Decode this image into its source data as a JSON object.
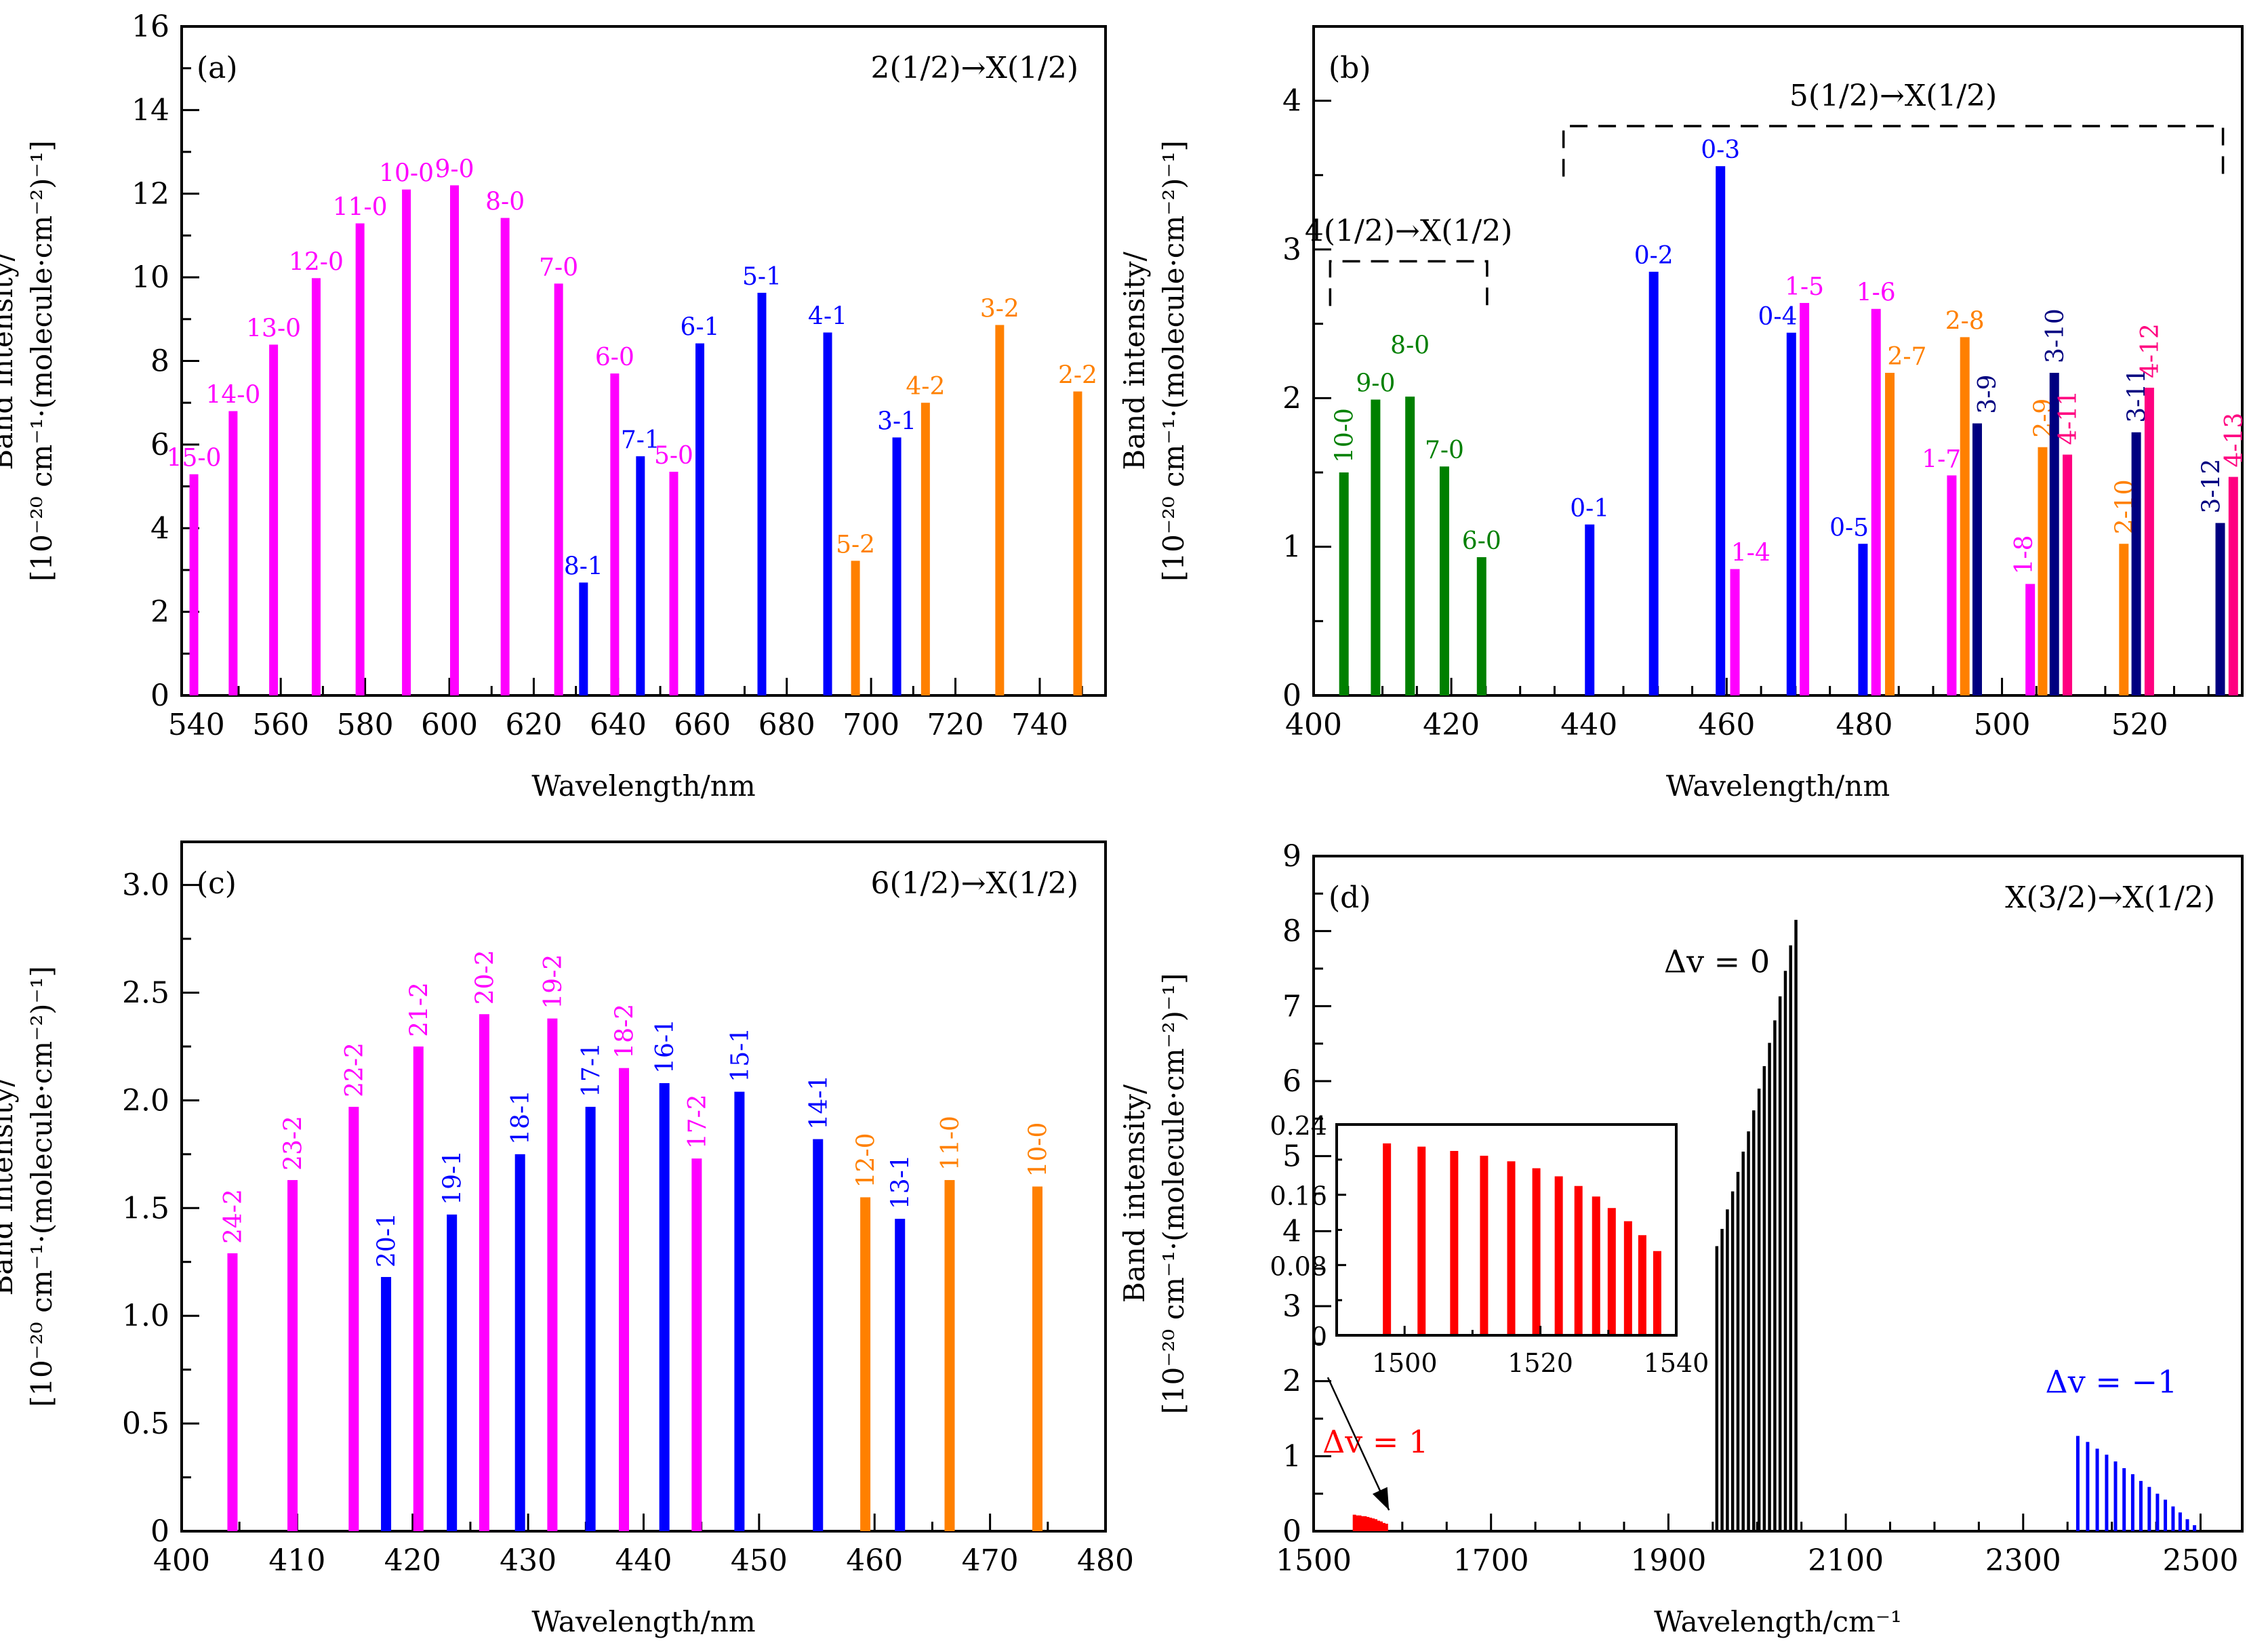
{
  "figure": {
    "y_axis_title_line1": "Band intensity/",
    "y_axis_title_line2": "[10⁻²⁰ cm⁻¹·(molecule·cm⁻²)⁻¹]"
  },
  "colors": {
    "magenta": "#FF00FF",
    "blue": "#0000FF",
    "orange": "#FF8000",
    "green": "#008000",
    "navy": "#000080",
    "deeppink": "#FF0080",
    "red": "#FF0000",
    "black": "#000000"
  },
  "chart_data": [
    {
      "id": "a",
      "type": "bar",
      "panel_label": "(a)",
      "title": "2(1/2)→X(1/2)",
      "xlabel": "Wavelength/nm",
      "ylabel": "Band intensity/[10^-20 cm^-1·(molecule·cm^-2)^-1]",
      "xlim": [
        536.5,
        755.6
      ],
      "ylim": [
        0,
        16
      ],
      "xticks": [
        540,
        560,
        580,
        600,
        620,
        640,
        660,
        680,
        700,
        720,
        740
      ],
      "xminor": 10,
      "yticks": [
        0,
        2,
        4,
        6,
        8,
        10,
        12,
        14,
        16
      ],
      "yminor": 1,
      "label_rotation": "horizontal",
      "bars": [
        {
          "label": "15-0",
          "x": 539.4,
          "y": 5.29,
          "color": "magenta"
        },
        {
          "label": "14-0",
          "x": 548.7,
          "y": 6.8,
          "color": "magenta"
        },
        {
          "label": "13-0",
          "x": 558.3,
          "y": 8.39,
          "color": "magenta"
        },
        {
          "label": "12-0",
          "x": 568.4,
          "y": 9.98,
          "color": "magenta"
        },
        {
          "label": "11-0",
          "x": 578.8,
          "y": 11.29,
          "color": "magenta"
        },
        {
          "label": "10-0",
          "x": 589.8,
          "y": 12.1,
          "color": "magenta"
        },
        {
          "label": "9-0",
          "x": 601.2,
          "y": 12.2,
          "color": "magenta"
        },
        {
          "label": "8-0",
          "x": 613.2,
          "y": 11.42,
          "color": "magenta"
        },
        {
          "label": "7-0",
          "x": 625.9,
          "y": 9.85,
          "color": "magenta"
        },
        {
          "label": "8-1",
          "x": 631.8,
          "y": 2.7,
          "color": "blue"
        },
        {
          "label": "6-0",
          "x": 639.2,
          "y": 7.7,
          "color": "magenta"
        },
        {
          "label": "7-1",
          "x": 645.3,
          "y": 5.72,
          "color": "blue"
        },
        {
          "label": "5-0",
          "x": 653.2,
          "y": 5.35,
          "color": "magenta"
        },
        {
          "label": "6-1",
          "x": 659.4,
          "y": 8.42,
          "color": "blue"
        },
        {
          "label": "5-1",
          "x": 674.1,
          "y": 9.63,
          "color": "blue"
        },
        {
          "label": "4-1",
          "x": 689.7,
          "y": 8.68,
          "color": "blue"
        },
        {
          "label": "5-2",
          "x": 696.3,
          "y": 3.22,
          "color": "orange"
        },
        {
          "label": "3-1",
          "x": 706.1,
          "y": 6.17,
          "color": "blue"
        },
        {
          "label": "4-2",
          "x": 712.9,
          "y": 7.0,
          "color": "orange"
        },
        {
          "label": "3-2",
          "x": 730.5,
          "y": 8.86,
          "color": "orange"
        },
        {
          "label": "2-2",
          "x": 749.0,
          "y": 7.27,
          "color": "orange"
        }
      ]
    },
    {
      "id": "b",
      "type": "bar",
      "panel_label": "(b)",
      "title": "",
      "xlabel": "Wavelength/nm",
      "ylabel": "Band intensity/[10^-20 cm^-1·(molecule·cm^-2)^-1]",
      "xlim": [
        400,
        534.9
      ],
      "ylim": [
        0,
        4.5
      ],
      "xticks": [
        400,
        420,
        440,
        460,
        480,
        500,
        520
      ],
      "xminor": 5,
      "yticks": [
        0,
        1,
        2,
        3,
        4
      ],
      "yminor": 0.5,
      "annotations": [
        {
          "text": "4(1/2)→X(1/2)",
          "bracket_x": [
            402.4,
            425.2
          ],
          "bracket_y": [
            2.62,
            2.92
          ]
        },
        {
          "text": "5(1/2)→X(1/2)",
          "bracket_x": [
            436.3,
            532.1
          ],
          "bracket_y": [
            3.49,
            3.83
          ]
        }
      ],
      "bars": [
        {
          "label": "10-0",
          "x": 404.4,
          "y": 1.5,
          "color": "green",
          "rot": true
        },
        {
          "label": "9-0",
          "x": 409.0,
          "y": 1.99,
          "color": "green",
          "rot": false
        },
        {
          "label": "8-0",
          "x": 414.0,
          "y": 2.01,
          "color": "green",
          "rot": false,
          "label_dy": 2.3
        },
        {
          "label": "7-0",
          "x": 419.0,
          "y": 1.54,
          "color": "green",
          "rot": false
        },
        {
          "label": "6-0",
          "x": 424.4,
          "y": 0.93,
          "color": "green",
          "rot": false
        },
        {
          "label": "0-1",
          "x": 440.1,
          "y": 1.15,
          "color": "blue",
          "rot": false
        },
        {
          "label": "0-2",
          "x": 449.4,
          "y": 2.85,
          "color": "blue",
          "rot": false
        },
        {
          "label": "0-3",
          "x": 459.1,
          "y": 3.56,
          "color": "blue",
          "rot": false
        },
        {
          "label": "1-4",
          "x": 461.2,
          "y": 0.85,
          "color": "magenta",
          "rot": false,
          "dx": 2.3
        },
        {
          "label": "0-4",
          "x": 469.4,
          "y": 2.44,
          "color": "blue",
          "rot": false,
          "dx": -2.0
        },
        {
          "label": "1-5",
          "x": 471.3,
          "y": 2.64,
          "color": "magenta",
          "rot": false
        },
        {
          "label": "0-5",
          "x": 479.8,
          "y": 1.02,
          "color": "blue",
          "rot": false,
          "dx": -2.0
        },
        {
          "label": "1-6",
          "x": 481.7,
          "y": 2.6,
          "color": "magenta",
          "rot": false
        },
        {
          "label": "2-7",
          "x": 483.7,
          "y": 2.17,
          "color": "orange",
          "rot": false,
          "dx": 2.5
        },
        {
          "label": "1-7",
          "x": 492.7,
          "y": 1.48,
          "color": "magenta",
          "rot": false,
          "dx": -1.5
        },
        {
          "label": "2-8",
          "x": 494.6,
          "y": 2.41,
          "color": "orange",
          "rot": false
        },
        {
          "label": "3-9",
          "x": 496.4,
          "y": 1.83,
          "color": "navy",
          "rot": true,
          "dx": 1.4
        },
        {
          "label": "1-8",
          "x": 504.1,
          "y": 0.75,
          "color": "magenta",
          "rot": true,
          "dx": -1.0
        },
        {
          "label": "2-9",
          "x": 505.9,
          "y": 1.67,
          "color": "orange",
          "rot": true
        },
        {
          "label": "3-10",
          "x": 507.6,
          "y": 2.17,
          "color": "navy",
          "rot": true
        },
        {
          "label": "4-11",
          "x": 509.5,
          "y": 1.62,
          "color": "deeppink",
          "rot": true
        },
        {
          "label": "2-10",
          "x": 517.7,
          "y": 1.02,
          "color": "orange",
          "rot": true
        },
        {
          "label": "3-11",
          "x": 519.5,
          "y": 1.77,
          "color": "navy",
          "rot": true
        },
        {
          "label": "4-12",
          "x": 521.4,
          "y": 2.07,
          "color": "deeppink",
          "rot": true
        },
        {
          "label": "3-12",
          "x": 531.7,
          "y": 1.16,
          "color": "navy",
          "rot": true,
          "dx": -1.4
        },
        {
          "label": "4-13",
          "x": 533.6,
          "y": 1.47,
          "color": "deeppink",
          "rot": true
        }
      ]
    },
    {
      "id": "c",
      "type": "bar",
      "panel_label": "(c)",
      "title": "6(1/2)→X(1/2)",
      "xlabel": "Wavelength/nm",
      "ylabel": "Band intensity/[10^-20 cm^-1·(molecule·cm^-2)^-1]",
      "xlim": [
        400,
        480
      ],
      "ylim": [
        0,
        3.2
      ],
      "xticks": [
        400,
        410,
        420,
        430,
        440,
        450,
        460,
        470,
        480
      ],
      "xtick_labels": [
        "400",
        "410",
        "420",
        "430",
        "440",
        "450",
        "460",
        "470",
        "480"
      ],
      "xminor": 5,
      "yticks": [
        0,
        0.5,
        1.0,
        1.5,
        2.0,
        2.5,
        3.0
      ],
      "ytick_labels": [
        "0",
        "0.5",
        "1.0",
        "1.5",
        "2.0",
        "2.5",
        "3.0"
      ],
      "yminor": 0.25,
      "bars": [
        {
          "label": "24-2",
          "x": 404.4,
          "y": 1.29,
          "color": "magenta",
          "rot": true
        },
        {
          "label": "23-2",
          "x": 409.6,
          "y": 1.63,
          "color": "magenta",
          "rot": true
        },
        {
          "label": "22-2",
          "x": 414.9,
          "y": 1.97,
          "color": "magenta",
          "rot": true
        },
        {
          "label": "20-1",
          "x": 417.7,
          "y": 1.18,
          "color": "blue",
          "rot": true
        },
        {
          "label": "21-2",
          "x": 420.5,
          "y": 2.25,
          "color": "magenta",
          "rot": true
        },
        {
          "label": "19-1",
          "x": 423.4,
          "y": 1.47,
          "color": "blue",
          "rot": true
        },
        {
          "label": "20-2",
          "x": 426.2,
          "y": 2.4,
          "color": "magenta",
          "rot": true
        },
        {
          "label": "18-1",
          "x": 429.3,
          "y": 1.75,
          "color": "blue",
          "rot": true
        },
        {
          "label": "19-2",
          "x": 432.1,
          "y": 2.38,
          "color": "magenta",
          "rot": true
        },
        {
          "label": "17-1",
          "x": 435.4,
          "y": 1.97,
          "color": "blue",
          "rot": true
        },
        {
          "label": "18-2",
          "x": 438.3,
          "y": 2.15,
          "color": "magenta",
          "rot": true
        },
        {
          "label": "16-1",
          "x": 441.8,
          "y": 2.08,
          "color": "blue",
          "rot": true
        },
        {
          "label": "17-2",
          "x": 444.6,
          "y": 1.73,
          "color": "magenta",
          "rot": true
        },
        {
          "label": "15-1",
          "x": 448.3,
          "y": 2.04,
          "color": "blue",
          "rot": true
        },
        {
          "label": "14-1",
          "x": 455.1,
          "y": 1.82,
          "color": "blue",
          "rot": true
        },
        {
          "label": "12-0",
          "x": 459.2,
          "y": 1.55,
          "color": "orange",
          "rot": true
        },
        {
          "label": "13-1",
          "x": 462.2,
          "y": 1.45,
          "color": "blue",
          "rot": true
        },
        {
          "label": "11-0",
          "x": 466.5,
          "y": 1.63,
          "color": "orange",
          "rot": true
        },
        {
          "label": "10-0",
          "x": 474.1,
          "y": 1.6,
          "color": "orange",
          "rot": true
        }
      ]
    },
    {
      "id": "d",
      "type": "bar",
      "panel_label": "(d)",
      "title": "X(3/2)→X(1/2)",
      "xlabel": "Wavelength/cm⁻¹",
      "ylabel": "Band intensity/[10^-20 cm^-1·(molecule·cm^-2)^-1]",
      "xlim": [
        1500,
        2547
      ],
      "ylim": [
        0,
        9
      ],
      "xticks": [
        1500,
        1700,
        1900,
        2100,
        2300,
        2500
      ],
      "xminor": 50,
      "yticks": [
        0,
        1,
        2,
        3,
        4,
        5,
        6,
        7,
        8,
        9
      ],
      "yminor": 0.5,
      "series": [
        {
          "name": "Δv = 1",
          "color": "red",
          "x": [
            1546,
            1549,
            1552,
            1555,
            1558,
            1561,
            1564,
            1567,
            1570,
            1573,
            1576,
            1579,
            1582
          ],
          "y": [
            0.22,
            0.21,
            0.21,
            0.2,
            0.2,
            0.19,
            0.18,
            0.17,
            0.16,
            0.14,
            0.13,
            0.11,
            0.1
          ]
        },
        {
          "name": "Δv = 0",
          "color": "black",
          "x": [
            1954.6,
            1960.5,
            1966.5,
            1972.4,
            1978.4,
            1984.3,
            1990.3,
            1996.2,
            2002.2,
            2008.1,
            2014.0,
            2020.0,
            2025.9,
            2031.9,
            2037.8,
            2043.8
          ],
          "y": [
            3.8,
            4.03,
            4.29,
            4.53,
            4.79,
            5.06,
            5.33,
            5.61,
            5.9,
            6.2,
            6.51,
            6.81,
            7.13,
            7.47,
            7.81,
            8.15
          ]
        },
        {
          "name": "Δv = −1",
          "color": "blue",
          "x": [
            2361.6,
            2372.7,
            2383.5,
            2394.1,
            2404.1,
            2413.8,
            2423.5,
            2432.7,
            2442.2,
            2451.4,
            2460.3,
            2469.0,
            2477.0,
            2485.1,
            2493.2
          ],
          "y": [
            1.27,
            1.19,
            1.1,
            1.02,
            0.93,
            0.84,
            0.76,
            0.67,
            0.59,
            0.5,
            0.42,
            0.33,
            0.25,
            0.16,
            0.08
          ]
        }
      ],
      "annotations": [
        {
          "text": "Δv = 0",
          "color": "black",
          "x": 1895,
          "y": 7.45
        },
        {
          "text": "Δv = 1",
          "color": "red",
          "x": 1510,
          "y": 1.05
        },
        {
          "text": "Δv = −1",
          "color": "blue",
          "x": 2325,
          "y": 1.85
        }
      ],
      "inset": {
        "type": "bar",
        "xlim": [
          1490,
          1540
        ],
        "ylim": [
          0,
          0.24
        ],
        "xticks": [
          1500,
          1520,
          1540
        ],
        "xminor": 10,
        "yticks": [
          0,
          0.08,
          0.16,
          0.24
        ],
        "ytick_labels": [
          "0",
          "0.08",
          "0.16",
          "0.24"
        ],
        "yminor": 0.04,
        "color": "red",
        "x": [
          1497.4,
          1502.5,
          1507.3,
          1511.7,
          1515.7,
          1519.4,
          1522.7,
          1525.6,
          1528.2,
          1530.5,
          1532.9,
          1535.0,
          1537.2
        ],
        "y": [
          0.2185,
          0.2148,
          0.2099,
          0.2044,
          0.1981,
          0.1902,
          0.181,
          0.17,
          0.158,
          0.1449,
          0.1299,
          0.114,
          0.0959
        ],
        "arrow_from": [
          1516,
          2.05
        ],
        "arrow_to": [
          1585,
          0.28
        ]
      }
    }
  ]
}
